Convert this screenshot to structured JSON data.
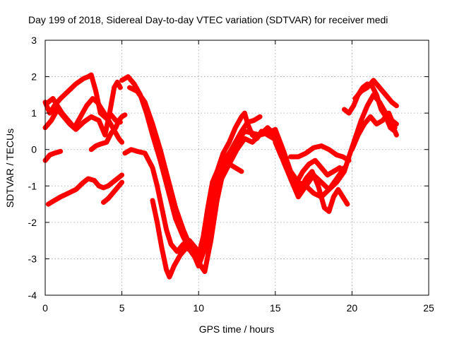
{
  "chart_data": {
    "type": "scatter",
    "title": "Day 199 of 2018, Sidereal Day-to-day VTEC variation (SDTVAR) for receiver medi",
    "xlabel": "GPS time / hours",
    "ylabel": "SDTVAR / TECUs",
    "xlim": [
      0,
      25
    ],
    "ylim": [
      -4,
      3
    ],
    "x_ticks": [
      "0",
      "5",
      "10",
      "15",
      "20",
      "25"
    ],
    "y_ticks": [
      "-4",
      "-3",
      "-2",
      "-1",
      "0",
      "1",
      "2",
      "3"
    ],
    "grid": true,
    "legend": "none",
    "marker": "plus",
    "series": [
      {
        "color": "#ff0000",
        "x": [
          0.0,
          0.3,
          0.6,
          1.0,
          1.5,
          2.0,
          2.5,
          2.8,
          3.0,
          3.3,
          3.6,
          4.0,
          4.3,
          4.6,
          4.9
        ],
        "y": [
          1.3,
          1.0,
          1.2,
          1.4,
          1.6,
          1.8,
          1.95,
          2.0,
          2.05,
          1.6,
          1.0,
          0.85,
          0.95,
          0.8,
          0.75
        ]
      },
      {
        "color": "#ff0000",
        "x": [
          0.0,
          0.4,
          0.8,
          1.2,
          1.6,
          2.0,
          2.5,
          3.0,
          3.5,
          3.9,
          4.2,
          4.5,
          4.7,
          4.9
        ],
        "y": [
          0.6,
          0.8,
          1.1,
          0.9,
          0.7,
          0.55,
          0.75,
          0.9,
          0.8,
          0.4,
          1.0,
          1.7,
          1.85,
          1.7
        ]
      },
      {
        "color": "#ff0000",
        "x": [
          0.2,
          0.5,
          0.8,
          1.1,
          1.5,
          1.9,
          2.3,
          2.7,
          3.1,
          3.4,
          3.7,
          4.0,
          4.4,
          4.8,
          5.0
        ],
        "y": [
          1.3,
          1.4,
          1.2,
          1.0,
          0.8,
          0.6,
          0.9,
          1.2,
          1.4,
          1.3,
          1.1,
          0.9,
          0.6,
          0.3,
          0.2
        ]
      },
      {
        "color": "#ff0000",
        "x": [
          0.0,
          0.3,
          0.6,
          1.0
        ],
        "y": [
          -0.3,
          -0.15,
          -0.1,
          -0.05
        ]
      },
      {
        "color": "#ff0000",
        "x": [
          3.0,
          3.3,
          3.6,
          4.0,
          4.3,
          4.6,
          4.8,
          5.0,
          5.2
        ],
        "y": [
          0.0,
          0.1,
          0.15,
          0.2,
          0.45,
          0.6,
          0.8,
          0.9,
          0.95
        ]
      },
      {
        "color": "#ff0000",
        "x": [
          0.2,
          0.6,
          1.0,
          1.5,
          2.0,
          2.5,
          2.8,
          3.2,
          3.5,
          3.8,
          4.1,
          4.4,
          4.7,
          5.0
        ],
        "y": [
          -1.5,
          -1.4,
          -1.3,
          -1.2,
          -1.1,
          -0.9,
          -0.8,
          -0.85,
          -1.0,
          -1.05,
          -1.0,
          -0.9,
          -0.8,
          -0.7
        ]
      },
      {
        "color": "#ff0000",
        "x": [
          3.8,
          4.1,
          4.4,
          4.7,
          5.0
        ],
        "y": [
          -1.45,
          -1.35,
          -1.2,
          -1.05,
          -0.9
        ]
      },
      {
        "color": "#ff0000",
        "x": [
          5.0,
          5.4,
          5.8,
          6.2,
          6.6,
          7.0,
          7.5,
          8.0,
          8.5,
          9.0,
          9.5,
          10.0,
          10.5,
          11.0,
          11.5,
          12.0,
          12.5,
          13.0,
          13.5,
          14.0,
          14.5,
          15.0,
          15.5,
          16.0,
          16.5,
          17.0,
          17.5,
          18.0,
          18.5,
          19.0,
          19.5
        ],
        "y": [
          1.9,
          2.0,
          1.8,
          1.5,
          1.0,
          0.4,
          -0.3,
          -1.1,
          -1.9,
          -2.4,
          -2.8,
          -3.1,
          -2.3,
          -1.2,
          -0.6,
          -0.2,
          0.2,
          0.5,
          0.45,
          0.4,
          0.45,
          0.55,
          0.0,
          -0.6,
          -0.9,
          -1.0,
          -1.2,
          -1.3,
          -1.1,
          -0.9,
          -0.6
        ]
      },
      {
        "color": "#ff0000",
        "x": [
          5.5,
          6.0,
          6.5,
          7.0,
          7.5,
          8.0,
          8.5,
          9.0,
          9.5,
          10.0,
          10.5,
          11.0,
          11.5,
          12.0,
          12.5,
          13.0,
          13.5,
          14.0,
          14.5,
          15.0,
          15.5,
          16.0,
          16.5,
          17.0,
          17.5,
          18.0,
          18.5,
          19.0,
          19.5
        ],
        "y": [
          1.7,
          1.6,
          1.3,
          0.7,
          0.0,
          -0.8,
          -1.6,
          -2.2,
          -2.7,
          -3.2,
          -2.6,
          -1.5,
          -0.8,
          -0.4,
          0.0,
          0.3,
          0.2,
          0.4,
          0.6,
          0.4,
          -0.3,
          -0.8,
          -1.3,
          -1.0,
          -0.7,
          -0.9,
          -1.1,
          -0.8,
          -0.5
        ]
      },
      {
        "color": "#ff0000",
        "x": [
          5.2,
          5.6,
          6.0,
          6.5,
          7.0,
          7.3,
          7.6,
          7.9,
          8.2,
          8.6,
          9.0,
          9.4,
          9.8,
          10.0,
          10.3,
          10.6,
          10.9,
          11.2,
          11.6,
          12.0,
          12.4,
          12.8,
          13.2,
          13.6,
          14.0
        ],
        "y": [
          -0.1,
          0.0,
          -0.05,
          -0.1,
          -0.5,
          -1.0,
          -1.6,
          -2.2,
          -2.6,
          -2.8,
          -2.6,
          -2.5,
          -2.7,
          -2.9,
          -2.4,
          -1.6,
          -0.9,
          -0.6,
          -0.3,
          -0.1,
          0.2,
          0.5,
          0.75,
          0.8,
          0.9
        ]
      },
      {
        "color": "#ff0000",
        "x": [
          7.0,
          7.3,
          7.6,
          7.9,
          8.1,
          8.4,
          8.8,
          9.2,
          9.6,
          10.0,
          10.4,
          10.8,
          11.2,
          11.6,
          12.0,
          12.4,
          12.8
        ],
        "y": [
          -1.4,
          -2.0,
          -2.7,
          -3.3,
          -3.5,
          -3.2,
          -2.9,
          -2.7,
          -2.8,
          -3.1,
          -3.35,
          -2.5,
          -1.4,
          -0.6,
          -0.4,
          -0.5,
          -0.6
        ]
      },
      {
        "color": "#ff0000",
        "x": [
          10.0,
          10.4,
          10.8,
          11.2,
          11.6,
          12.0,
          12.4,
          12.8,
          13.0,
          13.2,
          13.5,
          13.8,
          14.1,
          14.5,
          14.9,
          15.3,
          15.6,
          16.0,
          16.4,
          16.8,
          17.2,
          17.6,
          18.0,
          18.4,
          18.8,
          19.2,
          19.5,
          19.8,
          20.2,
          20.6,
          21.0,
          21.4,
          21.8,
          22.2,
          22.6,
          22.9
        ],
        "y": [
          -3.0,
          -2.3,
          -1.4,
          -0.6,
          -0.1,
          0.2,
          0.6,
          0.9,
          1.0,
          0.7,
          0.4,
          0.3,
          0.5,
          0.4,
          0.3,
          0.1,
          -0.3,
          -0.7,
          -0.9,
          -0.6,
          -0.4,
          -0.3,
          -0.5,
          -0.7,
          -0.6,
          -0.5,
          -0.6,
          -0.2,
          0.3,
          0.8,
          1.2,
          1.5,
          1.3,
          1.0,
          0.8,
          0.7
        ]
      },
      {
        "color": "#ff0000",
        "x": [
          15.0,
          15.4,
          15.8,
          16.2,
          16.6,
          17.0,
          17.4,
          17.8,
          18.2,
          18.5,
          18.8,
          19.1,
          19.4,
          19.7
        ],
        "y": [
          0.2,
          -0.2,
          -0.5,
          -0.9,
          -1.1,
          -0.8,
          -0.6,
          -1.0,
          -1.6,
          -1.7,
          -1.3,
          -1.1,
          -1.3,
          -1.5
        ]
      },
      {
        "color": "#ff0000",
        "x": [
          16.0,
          16.5,
          17.0,
          17.5,
          18.0,
          18.5,
          19.0,
          19.4,
          19.8
        ],
        "y": [
          -0.2,
          -0.2,
          -0.1,
          0.05,
          0.1,
          0.0,
          -0.15,
          -0.2,
          -0.3
        ]
      },
      {
        "color": "#ff0000",
        "x": [
          19.5,
          19.8,
          20.1,
          20.4,
          20.7,
          21.0,
          21.3,
          21.6,
          21.9,
          22.2,
          22.5,
          22.8,
          22.9
        ],
        "y": [
          1.1,
          1.0,
          1.2,
          1.5,
          1.7,
          1.8,
          1.75,
          1.5,
          1.1,
          0.9,
          0.6,
          0.5,
          0.4
        ]
      },
      {
        "color": "#ff0000",
        "x": [
          20.2,
          20.6,
          21.0,
          21.4,
          21.8,
          22.2,
          22.6,
          22.9
        ],
        "y": [
          1.4,
          1.6,
          1.7,
          1.9,
          1.7,
          1.5,
          1.3,
          1.2
        ]
      },
      {
        "color": "#ff0000",
        "x": [
          20.0,
          20.4,
          20.8,
          21.2,
          21.6,
          22.0,
          22.4,
          22.8
        ],
        "y": [
          0.0,
          0.4,
          0.7,
          0.9,
          0.7,
          0.8,
          1.0,
          0.6
        ]
      }
    ]
  }
}
